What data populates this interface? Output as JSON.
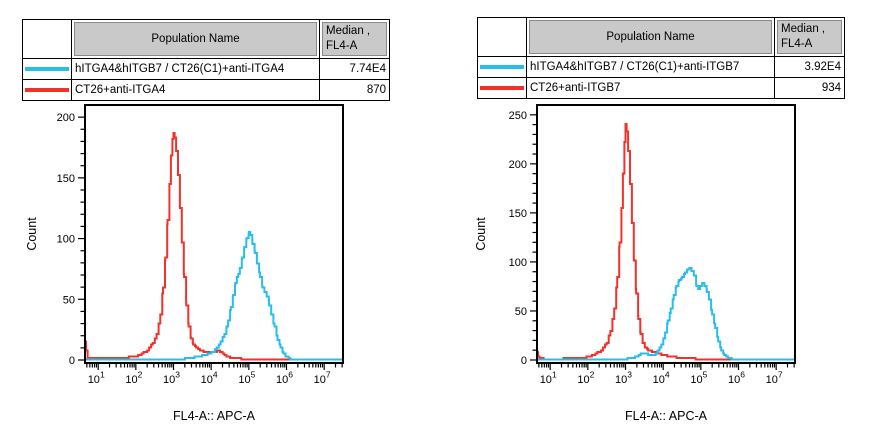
{
  "tables": [
    {
      "population_header": "Population Name",
      "median_header_line1": "Median ,",
      "median_header_line2": "FL4-A",
      "rows": [
        {
          "color": "#29BDEC",
          "population": "hITGA4&hITGB7 / CT26(C1)+anti-ITGA4",
          "median": "7.74E4"
        },
        {
          "color": "#F3312B",
          "population": "CT26+anti-ITGA4",
          "median": "870"
        }
      ]
    },
    {
      "population_header": "Population Name",
      "median_header_line1": "Median ,",
      "median_header_line2": "FL4-A",
      "rows": [
        {
          "color": "#29BDEC",
          "population": "hITGA4&hITGB7 / CT26(C1)+anti-ITGB7",
          "median": "3.92E4"
        },
        {
          "color": "#F3312B",
          "population": "CT26+anti-ITGB7",
          "median": "934"
        }
      ]
    }
  ],
  "chart_data": [
    {
      "type": "line",
      "subtype": "flow-cytometry-histogram",
      "title": "",
      "xlabel": "FL4-A:: APC-A",
      "ylabel": "Count",
      "x_scale": "log10",
      "xlim_log10": [
        0.65,
        7.5
      ],
      "x_decade_ticks": [
        1,
        2,
        3,
        4,
        5,
        6,
        7
      ],
      "ylim": [
        0,
        210
      ],
      "yticks": [
        0,
        50,
        100,
        150,
        200
      ],
      "y_minor_step": 10,
      "grid": false,
      "legend_position": "table-above",
      "series": [
        {
          "name": "hITGA4&hITGB7 / CT26(C1)+anti-ITGA4",
          "color": "#29BDEC",
          "median_fl4a": "7.74E4",
          "peak_log10x": 5.0,
          "peak_count": 105,
          "points_log10x_count": [
            [
              0.65,
              0.3
            ],
            [
              3.0,
              0.4
            ],
            [
              3.2,
              0.8
            ],
            [
              3.4,
              1.5
            ],
            [
              3.6,
              2.5
            ],
            [
              3.8,
              4
            ],
            [
              3.95,
              5.5
            ],
            [
              4.05,
              7
            ],
            [
              4.15,
              10
            ],
            [
              4.25,
              15
            ],
            [
              4.35,
              22
            ],
            [
              4.45,
              33
            ],
            [
              4.52,
              44
            ],
            [
              4.58,
              54
            ],
            [
              4.64,
              63
            ],
            [
              4.68,
              68
            ],
            [
              4.72,
              71
            ],
            [
              4.76,
              76
            ],
            [
              4.82,
              84
            ],
            [
              4.88,
              93
            ],
            [
              4.94,
              100
            ],
            [
              5.0,
              105
            ],
            [
              5.04,
              103
            ],
            [
              5.1,
              96
            ],
            [
              5.16,
              88
            ],
            [
              5.22,
              79
            ],
            [
              5.3,
              68
            ],
            [
              5.36,
              60
            ],
            [
              5.42,
              56
            ],
            [
              5.48,
              52
            ],
            [
              5.54,
              45
            ],
            [
              5.6,
              37
            ],
            [
              5.68,
              27
            ],
            [
              5.76,
              17
            ],
            [
              5.84,
              10
            ],
            [
              5.92,
              5
            ],
            [
              6.0,
              2.5
            ],
            [
              6.1,
              1
            ],
            [
              6.2,
              0.4
            ],
            [
              7.5,
              0.3
            ]
          ]
        },
        {
          "name": "CT26+anti-ITGA4",
          "color": "#F3312B",
          "median_fl4a": "870",
          "peak_log10x": 3.0,
          "peak_count": 187,
          "points_log10x_count": [
            [
              0.65,
              15
            ],
            [
              0.68,
              8
            ],
            [
              0.72,
              2
            ],
            [
              0.8,
              1.5
            ],
            [
              1.2,
              1.5
            ],
            [
              1.6,
              1.8
            ],
            [
              1.9,
              2.5
            ],
            [
              2.1,
              4
            ],
            [
              2.3,
              8
            ],
            [
              2.45,
              14
            ],
            [
              2.55,
              22
            ],
            [
              2.65,
              38
            ],
            [
              2.72,
              60
            ],
            [
              2.78,
              85
            ],
            [
              2.84,
              115
            ],
            [
              2.89,
              145
            ],
            [
              2.93,
              168
            ],
            [
              2.97,
              182
            ],
            [
              3.0,
              187
            ],
            [
              3.03,
              183
            ],
            [
              3.07,
              172
            ],
            [
              3.12,
              152
            ],
            [
              3.17,
              125
            ],
            [
              3.22,
              97
            ],
            [
              3.28,
              68
            ],
            [
              3.34,
              45
            ],
            [
              3.4,
              28
            ],
            [
              3.46,
              18
            ],
            [
              3.52,
              13
            ],
            [
              3.6,
              10
            ],
            [
              3.7,
              8
            ],
            [
              3.8,
              7
            ],
            [
              3.9,
              6.5
            ],
            [
              4.0,
              6.5
            ],
            [
              4.1,
              7
            ],
            [
              4.18,
              7.5
            ],
            [
              4.25,
              6
            ],
            [
              4.35,
              4
            ],
            [
              4.45,
              2.5
            ],
            [
              4.6,
              1.5
            ],
            [
              4.8,
              1
            ],
            [
              5.1,
              0.6
            ],
            [
              7.5,
              0.5
            ]
          ]
        }
      ]
    },
    {
      "type": "line",
      "subtype": "flow-cytometry-histogram",
      "title": "",
      "xlabel": "FL4-A:: APC-A",
      "ylabel": "Count",
      "x_scale": "log10",
      "xlim_log10": [
        0.65,
        7.5
      ],
      "x_decade_ticks": [
        1,
        2,
        3,
        4,
        5,
        6,
        7
      ],
      "ylim": [
        0,
        260
      ],
      "yticks": [
        0,
        50,
        100,
        150,
        200,
        250
      ],
      "y_minor_step": 10,
      "grid": false,
      "legend_position": "table-above",
      "series": [
        {
          "name": "hITGA4&hITGB7 / CT26(C1)+anti-ITGB7",
          "color": "#29BDEC",
          "median_fl4a": "3.92E4",
          "peak_log10x": 4.7,
          "peak_count": 94,
          "points_log10x_count": [
            [
              0.65,
              0.3
            ],
            [
              2.8,
              0.4
            ],
            [
              3.0,
              1
            ],
            [
              3.2,
              2.5
            ],
            [
              3.35,
              5
            ],
            [
              3.45,
              7
            ],
            [
              3.55,
              6.5
            ],
            [
              3.65,
              5
            ],
            [
              3.75,
              5.5
            ],
            [
              3.85,
              9
            ],
            [
              3.95,
              16
            ],
            [
              4.05,
              28
            ],
            [
              4.12,
              40
            ],
            [
              4.2,
              53
            ],
            [
              4.28,
              66
            ],
            [
              4.35,
              76
            ],
            [
              4.42,
              81
            ],
            [
              4.5,
              84
            ],
            [
              4.58,
              89
            ],
            [
              4.64,
              93
            ],
            [
              4.7,
              94
            ],
            [
              4.76,
              91
            ],
            [
              4.82,
              86
            ],
            [
              4.88,
              76
            ],
            [
              4.93,
              72
            ],
            [
              4.98,
              75
            ],
            [
              5.04,
              79
            ],
            [
              5.1,
              76
            ],
            [
              5.16,
              70
            ],
            [
              5.22,
              61
            ],
            [
              5.3,
              47
            ],
            [
              5.38,
              32
            ],
            [
              5.46,
              19
            ],
            [
              5.54,
              10
            ],
            [
              5.62,
              5
            ],
            [
              5.72,
              2
            ],
            [
              5.82,
              0.8
            ],
            [
              6.0,
              0.4
            ],
            [
              7.5,
              0.3
            ]
          ]
        },
        {
          "name": "CT26+anti-ITGB7",
          "color": "#F3312B",
          "median_fl4a": "934",
          "peak_log10x": 3.0,
          "peak_count": 240,
          "points_log10x_count": [
            [
              0.65,
              8
            ],
            [
              0.68,
              4
            ],
            [
              0.72,
              1.5
            ],
            [
              0.9,
              1
            ],
            [
              1.3,
              1.2
            ],
            [
              1.7,
              1.8
            ],
            [
              2.0,
              3
            ],
            [
              2.2,
              6
            ],
            [
              2.35,
              10
            ],
            [
              2.5,
              18
            ],
            [
              2.6,
              30
            ],
            [
              2.7,
              52
            ],
            [
              2.78,
              85
            ],
            [
              2.84,
              120
            ],
            [
              2.89,
              155
            ],
            [
              2.93,
              190
            ],
            [
              2.97,
              222
            ],
            [
              3.0,
              240
            ],
            [
              3.03,
              233
            ],
            [
              3.07,
              213
            ],
            [
              3.12,
              180
            ],
            [
              3.17,
              140
            ],
            [
              3.22,
              102
            ],
            [
              3.28,
              68
            ],
            [
              3.34,
              42
            ],
            [
              3.4,
              26
            ],
            [
              3.46,
              17
            ],
            [
              3.52,
              12
            ],
            [
              3.6,
              10
            ],
            [
              3.7,
              8.5
            ],
            [
              3.8,
              7.5
            ],
            [
              3.9,
              6
            ],
            [
              4.0,
              5
            ],
            [
              4.15,
              4
            ],
            [
              4.3,
              3
            ],
            [
              4.5,
              2
            ],
            [
              4.7,
              1.5
            ],
            [
              5.0,
              1
            ],
            [
              5.4,
              0.7
            ],
            [
              7.5,
              0.6
            ]
          ]
        }
      ]
    }
  ]
}
